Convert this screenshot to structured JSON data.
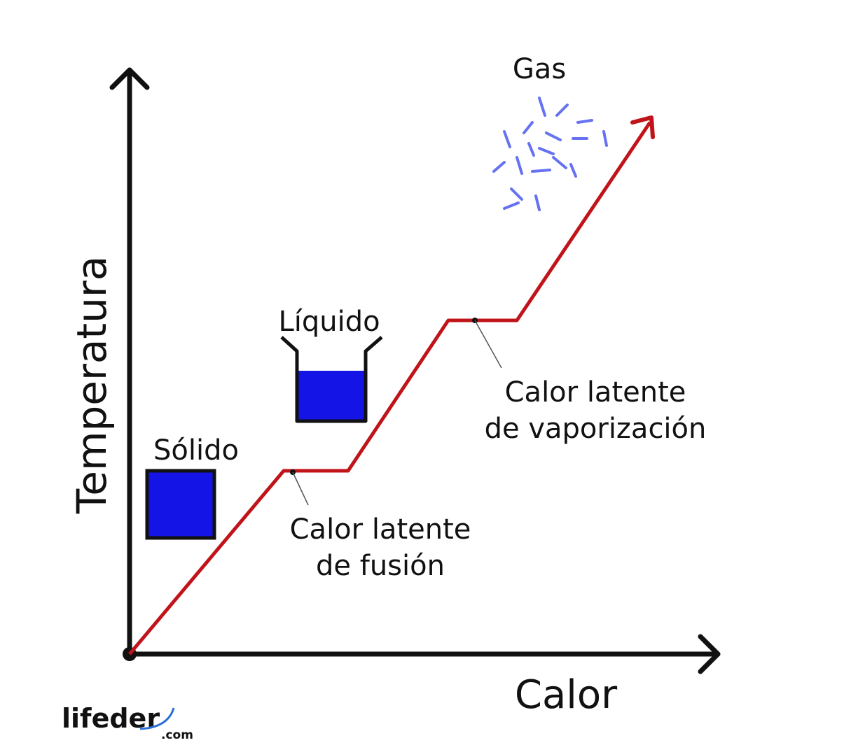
{
  "axes": {
    "x_label": "Calor",
    "y_label": "Temperatura"
  },
  "phases": [
    {
      "label": "Sólido"
    },
    {
      "label": "Líquido"
    },
    {
      "label": "Gas"
    }
  ],
  "annotations": [
    {
      "lines": [
        "Calor latente",
        "de fusión"
      ]
    },
    {
      "lines": [
        "Calor latente",
        "de vaporización"
      ]
    }
  ],
  "logo": {
    "name": "lifeder",
    "suffix": ".com"
  }
}
